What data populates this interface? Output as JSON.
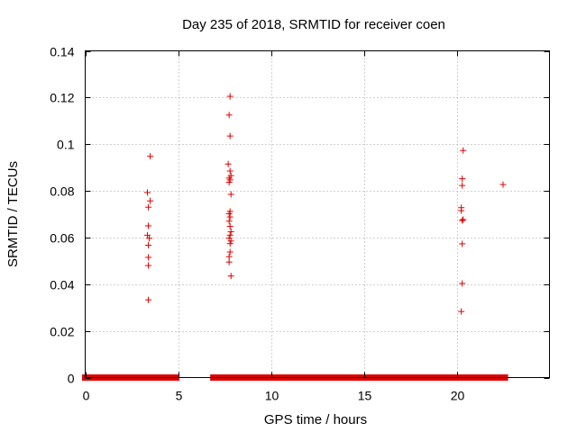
{
  "chart_data": {
    "type": "scatter",
    "title": "Day 235 of 2018, SRMTID for receiver coen",
    "xlabel": "GPS time / hours",
    "ylabel": "SRMTID / TECUs",
    "xlim": [
      0,
      25
    ],
    "ylim": [
      0,
      0.14
    ],
    "xticks": [
      0,
      5,
      10,
      15,
      20
    ],
    "xtick_labels": [
      "0",
      "5",
      "10",
      "15",
      "20"
    ],
    "yticks": [
      0,
      0.02,
      0.04,
      0.06,
      0.08,
      0.1,
      0.12,
      0.14
    ],
    "ytick_labels": [
      "0",
      "0.02",
      "0.04",
      "0.06",
      "0.08",
      "0.1",
      "0.12",
      "0.14"
    ],
    "grid": true,
    "marker": "+",
    "marker_color": "#e00000",
    "series": [
      {
        "name": "SRMTID",
        "points": [
          [
            3.4,
            0.0333
          ],
          [
            3.4,
            0.048
          ],
          [
            3.4,
            0.0515
          ],
          [
            3.4,
            0.0567
          ],
          [
            3.45,
            0.0597
          ],
          [
            3.35,
            0.061
          ],
          [
            3.4,
            0.065
          ],
          [
            3.4,
            0.073
          ],
          [
            3.5,
            0.0757
          ],
          [
            3.35,
            0.0793
          ],
          [
            3.5,
            0.0948
          ],
          [
            7.75,
            0.0518
          ],
          [
            7.8,
            0.0538
          ],
          [
            7.8,
            0.0574
          ],
          [
            7.75,
            0.0597
          ],
          [
            7.8,
            0.061
          ],
          [
            7.85,
            0.0625
          ],
          [
            7.8,
            0.0648
          ],
          [
            7.75,
            0.067
          ],
          [
            7.8,
            0.0688
          ],
          [
            7.75,
            0.0702
          ],
          [
            7.8,
            0.0712
          ],
          [
            7.85,
            0.0785
          ],
          [
            7.75,
            0.0837
          ],
          [
            7.8,
            0.0847
          ],
          [
            7.75,
            0.0855
          ],
          [
            7.85,
            0.0865
          ],
          [
            7.8,
            0.0885
          ],
          [
            7.7,
            0.0915
          ],
          [
            7.8,
            0.1035
          ],
          [
            7.75,
            0.1125
          ],
          [
            7.8,
            0.1205
          ],
          [
            7.75,
            0.0495
          ],
          [
            7.85,
            0.0435
          ],
          [
            7.85,
            0.0585
          ],
          [
            20.25,
            0.0283
          ],
          [
            20.3,
            0.0403
          ],
          [
            20.3,
            0.0573
          ],
          [
            20.3,
            0.0673
          ],
          [
            20.35,
            0.0677
          ],
          [
            20.25,
            0.0715
          ],
          [
            20.25,
            0.0728
          ],
          [
            20.3,
            0.0823
          ],
          [
            20.3,
            0.0852
          ],
          [
            20.35,
            0.0973
          ],
          [
            22.5,
            0.0827
          ]
        ],
        "zero_runs": [
          [
            0.0,
            4.9
          ],
          [
            6.9,
            7.8
          ],
          [
            7.8,
            10.0
          ],
          [
            10.1,
            10.4
          ],
          [
            10.7,
            22.6
          ]
        ]
      }
    ]
  }
}
